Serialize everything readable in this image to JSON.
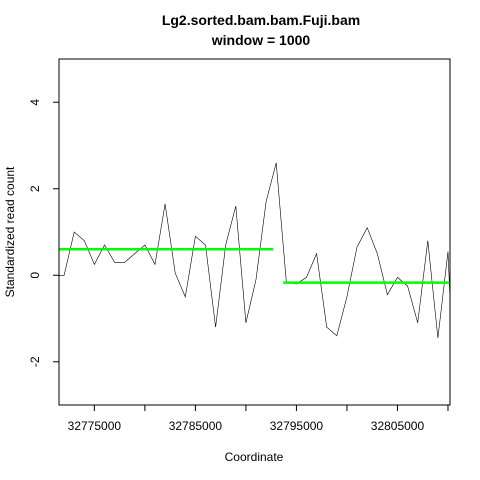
{
  "chart_data": {
    "type": "line",
    "title": "Lg2.sorted.bam.bam.Fuji.bam",
    "subtitle": "window = 1000",
    "xlabel": "Coordinate",
    "ylabel": "Standardized read count",
    "xlim": [
      32771500,
      32810200
    ],
    "ylim": [
      -3,
      5
    ],
    "x_ticks": [
      32770000,
      32775000,
      32780000,
      32785000,
      32790000,
      32795000,
      32800000,
      32805000,
      32810000
    ],
    "x_tick_labels": [
      {
        "value": 32775000,
        "label": "32775000"
      },
      {
        "value": 32785000,
        "label": "32785000"
      },
      {
        "value": 32795000,
        "label": "32795000"
      },
      {
        "value": 32805000,
        "label": "32805000"
      }
    ],
    "y_ticks": [
      {
        "value": -2,
        "label": "-2"
      },
      {
        "value": 0,
        "label": "0"
      },
      {
        "value": 2,
        "label": "2"
      },
      {
        "value": 4,
        "label": "4"
      }
    ],
    "grid": false,
    "series": [
      {
        "color": "#000000",
        "x": [
          32771500,
          32772000,
          32773000,
          32774000,
          32775000,
          32776000,
          32777000,
          32778000,
          32779000,
          32780000,
          32781000,
          32782000,
          32783000,
          32784000,
          32785000,
          32786000,
          32787000,
          32788000,
          32789000,
          32790000,
          32791000,
          32792000,
          32793000,
          32794000,
          32795000,
          32796000,
          32797000,
          32798000,
          32799000,
          32800000,
          32801000,
          32802000,
          32803000,
          32804000,
          32805000,
          32806000,
          32807000,
          32808000,
          32809000,
          32810000,
          32810200
        ],
        "values": [
          0.0,
          0.0,
          1.0,
          0.8,
          0.25,
          0.7,
          0.3,
          0.3,
          0.5,
          0.7,
          0.25,
          1.65,
          0.05,
          -0.5,
          0.9,
          0.7,
          -1.2,
          0.7,
          1.6,
          -1.1,
          -0.1,
          1.7,
          2.6,
          -0.15,
          -0.2,
          -0.05,
          0.5,
          -1.2,
          -1.4,
          -0.5,
          0.65,
          1.1,
          0.5,
          -0.45,
          -0.05,
          -0.25,
          -1.1,
          0.8,
          -1.45,
          0.55,
          -0.55
        ]
      },
      {
        "color": "#00ff00",
        "x": [
          32771500,
          32792700
        ],
        "values": [
          0.6,
          0.6
        ]
      },
      {
        "color": "#00ff00",
        "x": [
          32793700,
          32810200
        ],
        "values": [
          -0.17,
          -0.17
        ]
      }
    ]
  }
}
